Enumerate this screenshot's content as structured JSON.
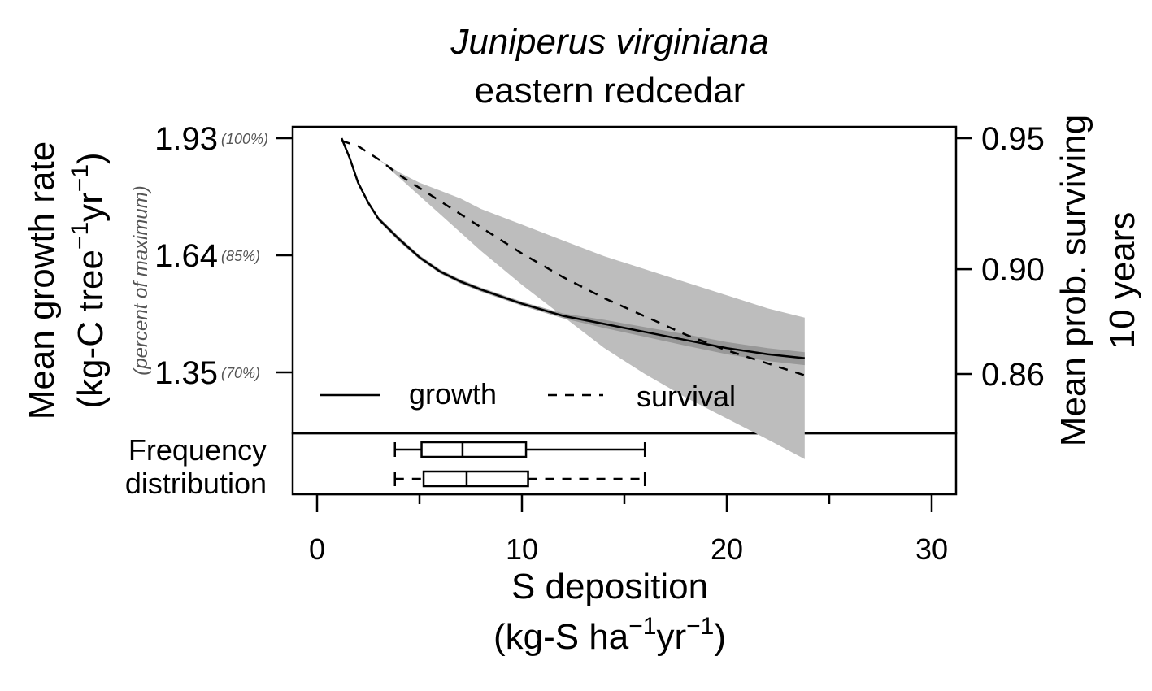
{
  "chart_data": {
    "type": "line",
    "title": "Juniperus virginiana",
    "subtitle": "eastern redcedar",
    "xlabel": {
      "line1": "S deposition",
      "line2_base": "(kg-S ha",
      "line2_sup1": "−1",
      "line2_mid": "yr",
      "line2_sup2": "−1",
      "line2_end": ")"
    },
    "ylabel_left": {
      "line1": "Mean growth rate",
      "line2_base": "(kg-C tree",
      "line2_sup1": "−1",
      "line2_mid": "yr",
      "line2_sup2": "−1",
      "line2_end": ")",
      "sublabel": "(percent of maximum)"
    },
    "ylabel_right": {
      "line1": "Mean prob. surviving",
      "line2": "10 years"
    },
    "xlim": [
      0,
      30
    ],
    "x_ticks": [
      "0",
      "10",
      "20",
      "30"
    ],
    "x_tick_values": [
      0,
      10,
      20,
      30
    ],
    "x_minor_ticks": [
      5,
      15,
      25
    ],
    "y_left_ticks": [
      {
        "value": 1.93,
        "label": "1.93",
        "pct": "(100%)"
      },
      {
        "value": 1.64,
        "label": "1.64",
        "pct": "(85%)"
      },
      {
        "value": 1.35,
        "label": "1.35",
        "pct": "(70%)"
      }
    ],
    "y_right_ticks": [
      {
        "value": 0.95,
        "label": "0.95"
      },
      {
        "value": 0.9,
        "label": "0.90"
      },
      {
        "value": 0.86,
        "label": "0.86"
      }
    ],
    "legend": {
      "position": "bottom",
      "entries": [
        {
          "label": "growth",
          "style": "solid"
        },
        {
          "label": "survival",
          "style": "dashed"
        }
      ]
    },
    "grid": false,
    "series": [
      {
        "name": "growth",
        "axis": "left",
        "style": "solid",
        "x": [
          1.2,
          1.6,
          2.0,
          2.5,
          3.0,
          4.0,
          5.0,
          6.0,
          7.0,
          8.0,
          10.0,
          12.0,
          14.0,
          16.0,
          18.0,
          20.0,
          22.0,
          23.8
        ],
        "y": [
          1.93,
          1.88,
          1.82,
          1.77,
          1.73,
          1.68,
          1.635,
          1.6,
          1.575,
          1.555,
          1.52,
          1.49,
          1.47,
          1.45,
          1.43,
          1.41,
          1.395,
          1.385
        ],
        "ci_low": [
          1.93,
          1.875,
          1.815,
          1.765,
          1.725,
          1.674,
          1.63,
          1.595,
          1.57,
          1.55,
          1.515,
          1.484,
          1.46,
          1.438,
          1.416,
          1.395,
          1.378,
          1.368
        ],
        "ci_high": [
          1.93,
          1.885,
          1.825,
          1.775,
          1.735,
          1.686,
          1.64,
          1.605,
          1.58,
          1.56,
          1.525,
          1.496,
          1.48,
          1.462,
          1.444,
          1.425,
          1.41,
          1.4
        ]
      },
      {
        "name": "survival",
        "axis": "right",
        "style": "dashed",
        "x": [
          1.2,
          2.0,
          3.0,
          4.0,
          5.0,
          6.0,
          7.0,
          8.0,
          10.0,
          12.0,
          14.0,
          16.0,
          18.0,
          20.0,
          22.0,
          23.8
        ],
        "y": [
          0.949,
          0.947,
          0.942,
          0.936,
          0.931,
          0.926,
          0.921,
          0.916,
          0.906,
          0.897,
          0.889,
          0.882,
          0.875,
          0.869,
          0.864,
          0.8595
        ],
        "ci_low": [
          0.949,
          0.947,
          0.942,
          0.935,
          0.928,
          0.921,
          0.914,
          0.907,
          0.894,
          0.882,
          0.87,
          0.86,
          0.851,
          0.843,
          0.835,
          0.8275
        ],
        "ci_high": [
          0.949,
          0.947,
          0.942,
          0.937,
          0.933,
          0.93,
          0.927,
          0.923,
          0.917,
          0.911,
          0.905,
          0.9,
          0.895,
          0.89,
          0.885,
          0.8815
        ]
      }
    ],
    "frequency_distribution": {
      "label_line1": "Frequency",
      "label_line2": "distribution",
      "boxplots": [
        {
          "series": "growth",
          "style": "solid",
          "min": 3.8,
          "q1": 5.1,
          "median": 7.1,
          "q3": 10.2,
          "max": 16.0
        },
        {
          "series": "survival",
          "style": "dashed",
          "min": 3.8,
          "q1": 5.2,
          "median": 7.3,
          "q3": 10.3,
          "max": 16.0
        }
      ]
    }
  }
}
